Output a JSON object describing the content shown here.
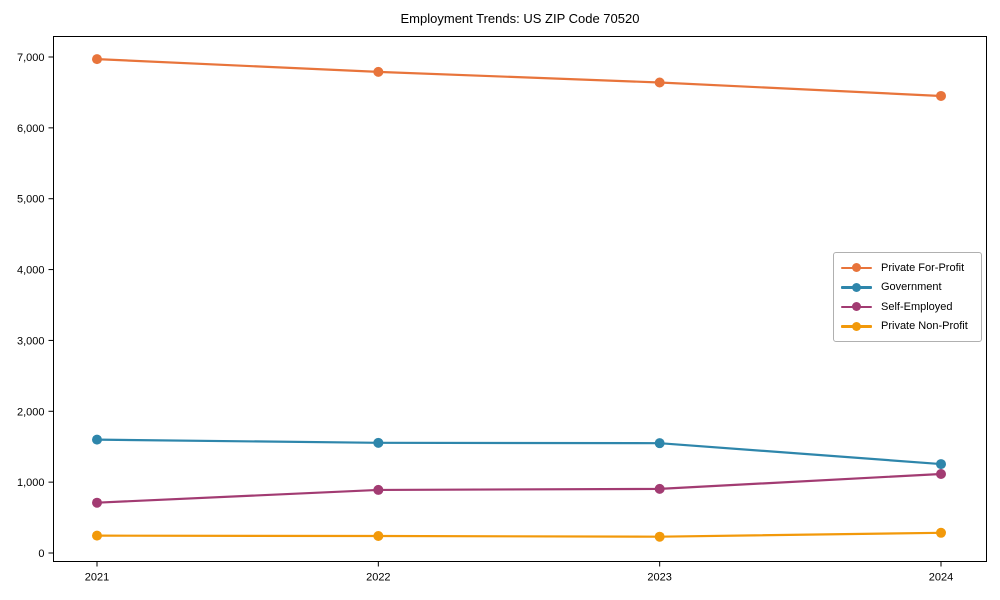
{
  "chart_data": {
    "type": "line",
    "title": "Employment Trends: US ZIP Code 70520",
    "xlabel": "",
    "ylabel": "",
    "categories": [
      "2021",
      "2022",
      "2023",
      "2024"
    ],
    "series": [
      {
        "name": "Private For-Profit",
        "color": "#E8743B",
        "values": [
          6970,
          6790,
          6640,
          6450
        ]
      },
      {
        "name": "Government",
        "color": "#2E86AB",
        "values": [
          1600,
          1555,
          1550,
          1255
        ]
      },
      {
        "name": "Self-Employed",
        "color": "#A23B72",
        "values": [
          710,
          890,
          905,
          1115
        ]
      },
      {
        "name": "Private Non-Profit",
        "color": "#F2990A",
        "values": [
          245,
          240,
          230,
          285
        ]
      }
    ],
    "y_ticks": [
      {
        "value": 0,
        "label": "0"
      },
      {
        "value": 1000,
        "label": "1,000"
      },
      {
        "value": 2000,
        "label": "2,000"
      },
      {
        "value": 3000,
        "label": "3,000"
      },
      {
        "value": 4000,
        "label": "4,000"
      },
      {
        "value": 5000,
        "label": "5,000"
      },
      {
        "value": 6000,
        "label": "6,000"
      },
      {
        "value": 7000,
        "label": "7,000"
      }
    ],
    "ylim": [
      0,
      7000
    ],
    "grid": false,
    "marker": "circle",
    "legend_position": "center-right"
  }
}
